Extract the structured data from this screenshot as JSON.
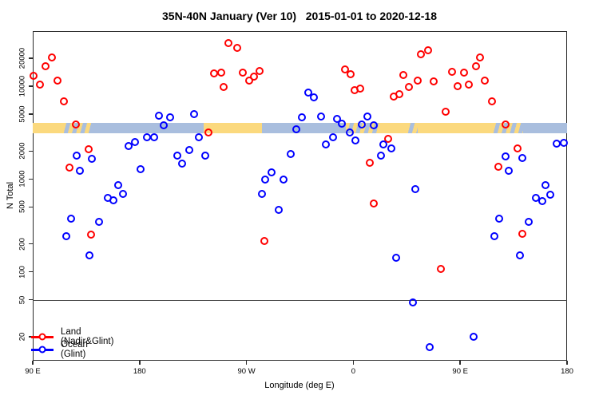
{
  "chart_data": {
    "type": "scatter",
    "title": "35N-40N January (Ver 10)   2015-01-01 to 2020-12-18",
    "xlabel": "Longitude (deg E)",
    "ylabel": "N Total",
    "x_axis": {
      "range_deg": [
        90,
        540
      ],
      "ticks": [
        {
          "pos": 90,
          "label": "90 E"
        },
        {
          "pos": 180,
          "label": "180"
        },
        {
          "pos": 270,
          "label": "90 W"
        },
        {
          "pos": 360,
          "label": "0"
        },
        {
          "pos": 450,
          "label": "90 E"
        },
        {
          "pos": 540,
          "label": "180"
        }
      ]
    },
    "y_axis": {
      "scale": "log",
      "range": [
        11,
        39200
      ],
      "ticks": [
        20,
        50,
        100,
        200,
        500,
        1000,
        2000,
        5000,
        10000,
        20000
      ]
    },
    "reference_line_n": 50,
    "land_ocean_band": {
      "n_range": [
        3100,
        4000
      ],
      "land_color": "#FBD97E",
      "ocean_color": "#A9BEDE",
      "segments": [
        {
          "from": 90,
          "to": 115,
          "type": "land"
        },
        {
          "from": 115,
          "to": 140,
          "type": "mixed"
        },
        {
          "from": 140,
          "to": 234,
          "type": "ocean"
        },
        {
          "from": 234,
          "to": 283,
          "type": "land"
        },
        {
          "from": 283,
          "to": 354,
          "type": "ocean"
        },
        {
          "from": 354,
          "to": 381,
          "type": "mixed"
        },
        {
          "from": 381,
          "to": 405,
          "type": "land"
        },
        {
          "from": 405,
          "to": 414,
          "type": "mixed"
        },
        {
          "from": 414,
          "to": 477,
          "type": "land"
        },
        {
          "from": 477,
          "to": 503,
          "type": "mixed"
        },
        {
          "from": 503,
          "to": 540,
          "type": "ocean"
        }
      ]
    },
    "legend": {
      "entries": [
        {
          "label": "Land (Nadir&Glint)",
          "color": "#FF0000"
        },
        {
          "label": "Ocean (Glint)",
          "color": "#0000FF"
        }
      ]
    },
    "series": [
      {
        "name": "Land (Nadir&Glint)",
        "color": "#FF0000",
        "points": [
          [
            106,
            20400
          ],
          [
            101,
            16400
          ],
          [
            91,
            12900
          ],
          [
            96,
            10400
          ],
          [
            111,
            11500
          ],
          [
            116,
            6900
          ],
          [
            126,
            3870
          ],
          [
            137,
            2090
          ],
          [
            121,
            1330
          ],
          [
            139,
            252
          ],
          [
            255,
            29100
          ],
          [
            262,
            25900
          ],
          [
            243,
            13700
          ],
          [
            249,
            14000
          ],
          [
            251,
            9800
          ],
          [
            267,
            14000
          ],
          [
            272,
            11500
          ],
          [
            276,
            12700
          ],
          [
            281,
            14600
          ],
          [
            238,
            3170
          ],
          [
            285,
            215
          ],
          [
            353,
            15200
          ],
          [
            358,
            13500
          ],
          [
            361,
            9060
          ],
          [
            366,
            9420
          ],
          [
            394,
            7730
          ],
          [
            399,
            8200
          ],
          [
            402,
            13200
          ],
          [
            407,
            9800
          ],
          [
            414,
            11500
          ],
          [
            428,
            11300
          ],
          [
            417,
            22100
          ],
          [
            423,
            24400
          ],
          [
            389,
            2710
          ],
          [
            374,
            1500
          ],
          [
            377,
            545
          ],
          [
            467,
            20400
          ],
          [
            463,
            16400
          ],
          [
            443,
            14300
          ],
          [
            453,
            14000
          ],
          [
            448,
            10000
          ],
          [
            457,
            10400
          ],
          [
            471,
            11500
          ],
          [
            477,
            6900
          ],
          [
            438,
            5310
          ],
          [
            488,
            3870
          ],
          [
            498,
            2130
          ],
          [
            482,
            1360
          ],
          [
            502,
            257
          ],
          [
            434,
            107
          ]
        ]
      },
      {
        "name": "Ocean (Glint)",
        "color": "#0000FF",
        "points": [
          [
            196,
            4810
          ],
          [
            200,
            3790
          ],
          [
            186,
            2820
          ],
          [
            192,
            2790
          ],
          [
            176,
            2500
          ],
          [
            171,
            2270
          ],
          [
            127,
            1790
          ],
          [
            140,
            1650
          ],
          [
            130,
            1230
          ],
          [
            181,
            1280
          ],
          [
            162,
            860
          ],
          [
            166,
            690
          ],
          [
            153,
            625
          ],
          [
            158,
            590
          ],
          [
            122,
            374
          ],
          [
            146,
            345
          ],
          [
            118,
            242
          ],
          [
            138,
            150
          ],
          [
            206,
            4620
          ],
          [
            226,
            5000
          ],
          [
            230,
            2820
          ],
          [
            222,
            2050
          ],
          [
            212,
            1790
          ],
          [
            216,
            1470
          ],
          [
            235,
            1790
          ],
          [
            291,
            1180
          ],
          [
            286,
            990
          ],
          [
            301,
            990
          ],
          [
            283,
            690
          ],
          [
            297,
            465
          ],
          [
            307,
            1860
          ],
          [
            322,
            8530
          ],
          [
            327,
            7580
          ],
          [
            317,
            4620
          ],
          [
            333,
            4710
          ],
          [
            312,
            3430
          ],
          [
            346,
            4440
          ],
          [
            350,
            3960
          ],
          [
            357,
            3170
          ],
          [
            362,
            2600
          ],
          [
            367,
            3870
          ],
          [
            372,
            4710
          ],
          [
            377,
            3790
          ],
          [
            343,
            2820
          ],
          [
            337,
            2360
          ],
          [
            385,
            2340
          ],
          [
            392,
            2130
          ],
          [
            383,
            1790
          ],
          [
            412,
            780
          ],
          [
            396,
            142
          ],
          [
            410,
            47
          ],
          [
            424,
            15.4
          ],
          [
            461,
            20
          ],
          [
            483,
            374
          ],
          [
            508,
            345
          ],
          [
            479,
            242
          ],
          [
            500,
            150
          ],
          [
            488,
            1760
          ],
          [
            502,
            1690
          ],
          [
            491,
            1230
          ],
          [
            531,
            2390
          ],
          [
            537,
            2440
          ],
          [
            522,
            860
          ],
          [
            526,
            680
          ],
          [
            514,
            625
          ],
          [
            519,
            580
          ]
        ]
      }
    ]
  }
}
